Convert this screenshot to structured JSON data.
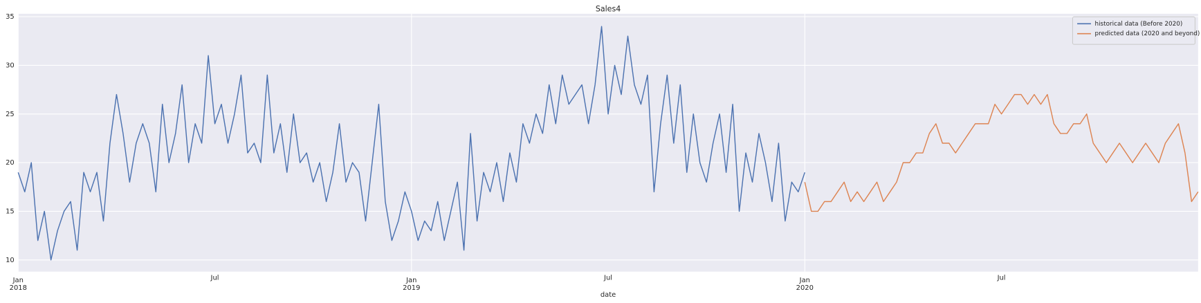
{
  "chart_data": {
    "type": "line",
    "title": "Sales4",
    "xlabel": "date",
    "xlim": [
      0,
      36
    ],
    "ylim": [
      8.8,
      35.3
    ],
    "yticks": [
      10,
      15,
      20,
      25,
      30,
      35
    ],
    "xticks": [
      {
        "value": 0,
        "label": "Jan",
        "year": "2018"
      },
      {
        "value": 6,
        "label": "Jul"
      },
      {
        "value": 12,
        "label": "Jan",
        "year": "2019"
      },
      {
        "value": 18,
        "label": "Jul"
      },
      {
        "value": 24,
        "label": "Jan",
        "year": "2020"
      },
      {
        "value": 30,
        "label": "Jul"
      }
    ],
    "grid": true,
    "legend": "upper right",
    "series": [
      {
        "name": "historical data (Before 2020)",
        "color": "#4c72b0",
        "x": [
          0,
          0.2,
          0.4,
          0.6,
          0.8,
          1,
          1.2,
          1.4,
          1.6,
          1.8,
          2,
          2.2,
          2.4,
          2.6,
          2.8,
          3,
          3.2,
          3.4,
          3.6,
          3.8,
          4,
          4.2,
          4.4,
          4.6,
          4.8,
          5,
          5.2,
          5.4,
          5.6,
          5.8,
          6,
          6.2,
          6.4,
          6.6,
          6.8,
          7,
          7.2,
          7.4,
          7.6,
          7.8,
          8,
          8.2,
          8.4,
          8.6,
          8.8,
          9,
          9.2,
          9.4,
          9.6,
          9.8,
          10,
          10.2,
          10.4,
          10.6,
          10.8,
          11,
          11.2,
          11.4,
          11.6,
          11.8,
          12,
          12.2,
          12.4,
          12.6,
          12.8,
          13,
          13.2,
          13.4,
          13.6,
          13.8,
          14,
          14.2,
          14.4,
          14.6,
          14.8,
          15,
          15.2,
          15.4,
          15.6,
          15.8,
          16,
          16.2,
          16.4,
          16.6,
          16.8,
          17,
          17.2,
          17.4,
          17.6,
          17.8,
          18,
          18.2,
          18.4,
          18.6,
          18.8,
          19,
          19.2,
          19.4,
          19.6,
          19.8,
          20,
          20.2,
          20.4,
          20.6,
          20.8,
          21,
          21.2,
          21.4,
          21.6,
          21.8,
          22,
          22.2,
          22.4,
          22.6,
          22.8,
          23,
          23.2,
          23.4,
          23.6,
          23.8,
          24
        ],
        "values": [
          19,
          17,
          20,
          12,
          15,
          10,
          13,
          15,
          16,
          11,
          19,
          17,
          19,
          14,
          22,
          27,
          23,
          18,
          22,
          24,
          22,
          17,
          26,
          20,
          23,
          28,
          20,
          24,
          22,
          31,
          24,
          26,
          22,
          25,
          29,
          21,
          22,
          20,
          29,
          21,
          24,
          19,
          25,
          20,
          21,
          18,
          20,
          16,
          19,
          24,
          18,
          20,
          19,
          14,
          20,
          26,
          16,
          12,
          14,
          17,
          15,
          12,
          14,
          13,
          16,
          12,
          15,
          18,
          11,
          23,
          14,
          19,
          17,
          20,
          16,
          21,
          18,
          24,
          22,
          25,
          23,
          28,
          24,
          29,
          26,
          27,
          28,
          24,
          28,
          34,
          25,
          30,
          27,
          33,
          28,
          26,
          29,
          17,
          24,
          29,
          22,
          28,
          19,
          25,
          20,
          18,
          22,
          25,
          19,
          26,
          15,
          21,
          18,
          23,
          20,
          16,
          22,
          14,
          18,
          17,
          19
        ]
      },
      {
        "name": "predicted data (2020 and beyond)",
        "color": "#dd8452",
        "x": [
          24,
          24.2,
          24.4,
          24.6,
          24.8,
          25,
          25.2,
          25.4,
          25.6,
          25.8,
          26,
          26.2,
          26.4,
          26.6,
          26.8,
          27,
          27.2,
          27.4,
          27.6,
          27.8,
          28,
          28.2,
          28.4,
          28.6,
          28.8,
          29,
          29.2,
          29.4,
          29.6,
          29.8,
          30,
          30.2,
          30.4,
          30.6,
          30.8,
          31,
          31.2,
          31.4,
          31.6,
          31.8,
          32,
          32.2,
          32.4,
          32.6,
          32.8,
          33,
          33.2,
          33.4,
          33.6,
          33.8,
          34,
          34.2,
          34.4,
          34.6,
          34.8,
          35,
          35.2,
          35.4,
          35.6,
          35.8,
          36
        ],
        "values": [
          18,
          15,
          15,
          16,
          16,
          17,
          18,
          16,
          17,
          16,
          17,
          18,
          16,
          17,
          18,
          20,
          20,
          21,
          21,
          23,
          24,
          22,
          22,
          21,
          22,
          23,
          24,
          24,
          24,
          26,
          25,
          26,
          27,
          27,
          26,
          27,
          26,
          27,
          24,
          23,
          23,
          24,
          24,
          25,
          22,
          21,
          20,
          21,
          22,
          21,
          20,
          21,
          22,
          21,
          20,
          22,
          23,
          24,
          21,
          16,
          17
        ]
      }
    ]
  }
}
